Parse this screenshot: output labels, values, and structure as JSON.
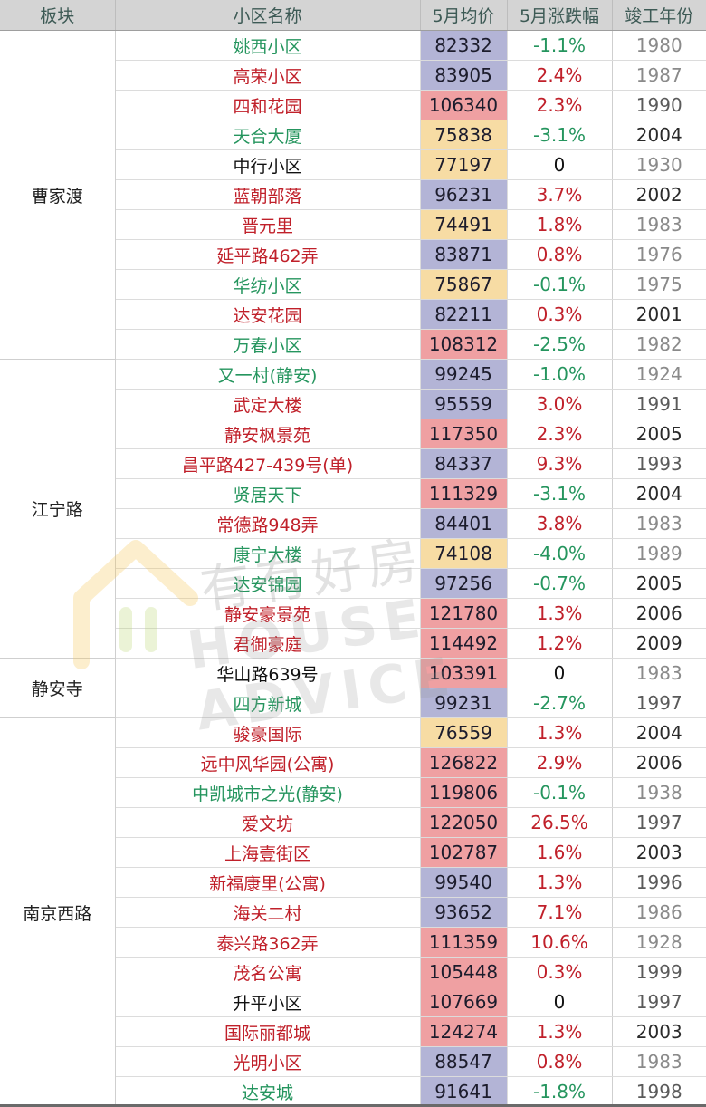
{
  "header": {
    "block": "板块",
    "name": "小区名称",
    "price": "5月均价",
    "change": "5月涨跌幅",
    "year": "竣工年份"
  },
  "watermark": {
    "cn": "有有好房",
    "en": "HOUSE ADVICE"
  },
  "colors": {
    "up": "#c0202a",
    "down": "#25955e",
    "price_low": "#f7dca4",
    "price_mid": "#b3b4d6",
    "price_high": "#efa0a2"
  },
  "groups": [
    {
      "block": "曹家渡",
      "rows": [
        {
          "name": "姚西小区",
          "price": "82332",
          "change": "-1.1%",
          "year": "1980"
        },
        {
          "name": "高荣小区",
          "price": "83905",
          "change": "2.4%",
          "year": "1987"
        },
        {
          "name": "四和花园",
          "price": "106340",
          "change": "2.3%",
          "year": "1990"
        },
        {
          "name": "天合大厦",
          "price": "75838",
          "change": "-3.1%",
          "year": "2004"
        },
        {
          "name": "中行小区",
          "price": "77197",
          "change": "0",
          "year": "1930"
        },
        {
          "name": "蓝朝部落",
          "price": "96231",
          "change": "3.7%",
          "year": "2002"
        },
        {
          "name": "晋元里",
          "price": "74491",
          "change": "1.8%",
          "year": "1983"
        },
        {
          "name": "延平路462弄",
          "price": "83871",
          "change": "0.8%",
          "year": "1976"
        },
        {
          "name": "华纺小区",
          "price": "75867",
          "change": "-0.1%",
          "year": "1975"
        },
        {
          "name": "达安花园",
          "price": "82211",
          "change": "0.3%",
          "year": "2001"
        },
        {
          "name": "万春小区",
          "price": "108312",
          "change": "-2.5%",
          "year": "1982"
        }
      ]
    },
    {
      "block": "江宁路",
      "rows": [
        {
          "name": "又一村(静安)",
          "price": "99245",
          "change": "-1.0%",
          "year": "1924"
        },
        {
          "name": "武定大楼",
          "price": "95559",
          "change": "3.0%",
          "year": "1991"
        },
        {
          "name": "静安枫景苑",
          "price": "117350",
          "change": "2.3%",
          "year": "2005"
        },
        {
          "name": "昌平路427-439号(单)",
          "price": "84337",
          "change": "9.3%",
          "year": "1993"
        },
        {
          "name": "贤居天下",
          "price": "111329",
          "change": "-3.1%",
          "year": "2004"
        },
        {
          "name": "常德路948弄",
          "price": "84401",
          "change": "3.8%",
          "year": "1983"
        },
        {
          "name": "康宁大楼",
          "price": "74108",
          "change": "-4.0%",
          "year": "1989"
        },
        {
          "name": "达安锦园",
          "price": "97256",
          "change": "-0.7%",
          "year": "2005"
        },
        {
          "name": "静安豪景苑",
          "price": "121780",
          "change": "1.3%",
          "year": "2006"
        },
        {
          "name": "君御豪庭",
          "price": "114492",
          "change": "1.2%",
          "year": "2009"
        }
      ]
    },
    {
      "block": "静安寺",
      "rows": [
        {
          "name": "华山路639号",
          "price": "103391",
          "change": "0",
          "year": "1983"
        },
        {
          "name": "四方新城",
          "price": "99231",
          "change": "-2.7%",
          "year": "1997"
        }
      ]
    },
    {
      "block": "南京西路",
      "rows": [
        {
          "name": "骏豪国际",
          "price": "76559",
          "change": "1.3%",
          "year": "2004"
        },
        {
          "name": "远中风华园(公寓)",
          "price": "126822",
          "change": "2.9%",
          "year": "2006"
        },
        {
          "name": "中凯城市之光(静安)",
          "price": "119806",
          "change": "-0.1%",
          "year": "1938"
        },
        {
          "name": "爱文坊",
          "price": "122050",
          "change": "26.5%",
          "year": "1997"
        },
        {
          "name": "上海壹街区",
          "price": "102787",
          "change": "1.6%",
          "year": "2003"
        },
        {
          "name": "新福康里(公寓)",
          "price": "99540",
          "change": "1.3%",
          "year": "1996"
        },
        {
          "name": "海关二村",
          "price": "93652",
          "change": "7.1%",
          "year": "1986"
        },
        {
          "name": "泰兴路362弄",
          "price": "111359",
          "change": "10.6%",
          "year": "1928"
        },
        {
          "name": "茂名公寓",
          "price": "105448",
          "change": "0.3%",
          "year": "1999"
        },
        {
          "name": "升平小区",
          "price": "107669",
          "change": "0",
          "year": "1997"
        },
        {
          "name": "国际丽都城",
          "price": "124274",
          "change": "1.3%",
          "year": "2003"
        },
        {
          "name": "光明小区",
          "price": "88547",
          "change": "0.8%",
          "year": "1983"
        },
        {
          "name": "达安城",
          "price": "91641",
          "change": "-1.8%",
          "year": "1998"
        }
      ]
    }
  ]
}
